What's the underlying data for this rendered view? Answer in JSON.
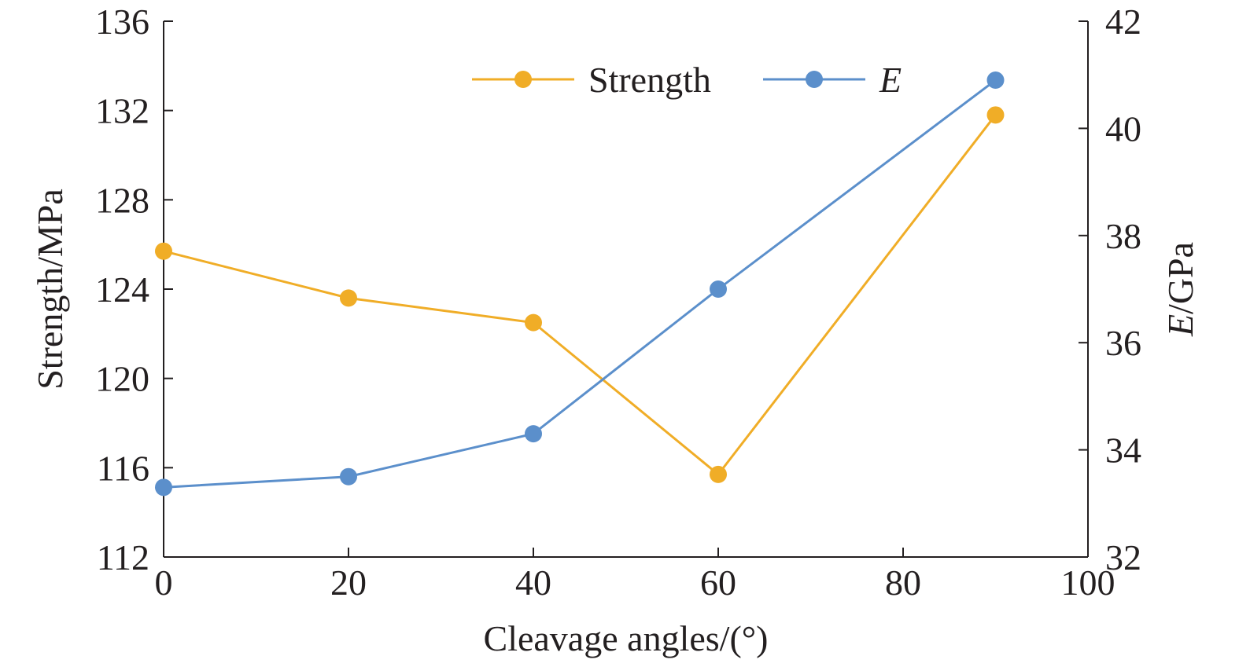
{
  "chart_data": {
    "type": "line",
    "xlabel": "Cleavage angles/(°)",
    "ylabel_left": "Strength/MPa",
    "ylabel_right": {
      "italic_part": "E",
      "rest": "/GPa"
    },
    "xlim": [
      0,
      100
    ],
    "xticks": [
      0,
      20,
      40,
      60,
      80,
      100
    ],
    "ylim_left": [
      112,
      136
    ],
    "yticks_left": [
      112,
      116,
      120,
      124,
      128,
      132,
      136
    ],
    "ylim_right": [
      32,
      42
    ],
    "yticks_right": [
      32,
      34,
      36,
      38,
      40,
      42
    ],
    "grid": false,
    "legend": "top-center",
    "series": [
      {
        "name": "Strength",
        "axis": "left",
        "color": "#f0ad27",
        "x": [
          0,
          20,
          40,
          60,
          90
        ],
        "y": [
          125.7,
          123.6,
          122.5,
          115.7,
          131.8
        ]
      },
      {
        "name": "E",
        "name_italic": true,
        "axis": "right",
        "color": "#5b8fcb",
        "x": [
          0,
          20,
          40,
          60,
          90
        ],
        "y": [
          33.3,
          33.5,
          34.3,
          37.0,
          40.9
        ]
      }
    ]
  }
}
